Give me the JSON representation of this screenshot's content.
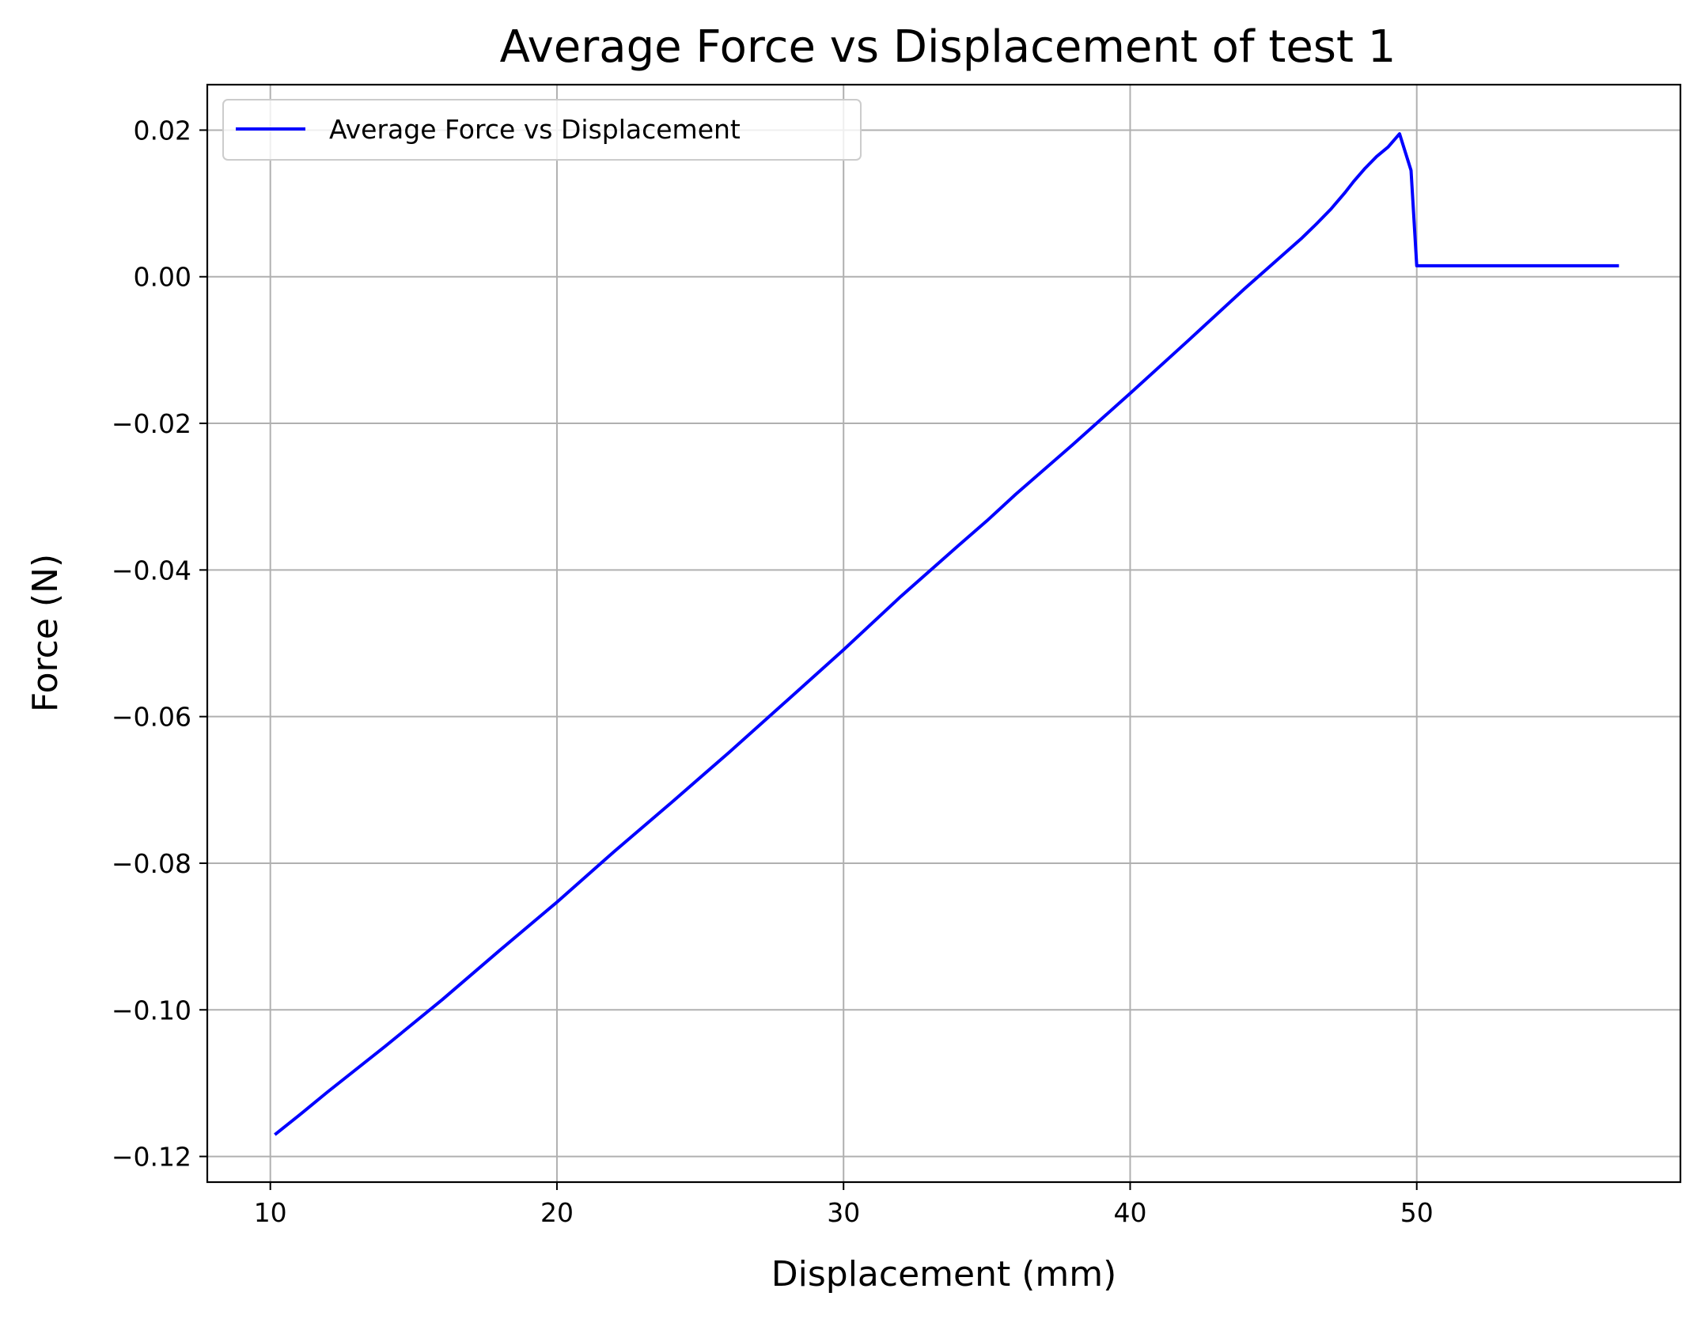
{
  "chart_data": {
    "type": "line",
    "title": "Average Force vs Displacement of test 1",
    "xlabel": "Displacement (mm)",
    "ylabel": "Force (N)",
    "xlim": [
      7.8,
      59.2
    ],
    "ylim": [
      -0.1235,
      0.0262
    ],
    "xticks": [
      10,
      20,
      30,
      40,
      50
    ],
    "xtick_labels": [
      "10",
      "20",
      "30",
      "40",
      "50"
    ],
    "yticks": [
      0.02,
      0.0,
      -0.02,
      -0.04,
      -0.06,
      -0.08,
      -0.1,
      -0.12
    ],
    "ytick_labels": [
      "0.02",
      "0.00",
      "−0.02",
      "−0.04",
      "−0.06",
      "−0.08",
      "−0.10",
      "−0.12"
    ],
    "grid": true,
    "legend": {
      "placement": "upper left"
    },
    "series": [
      {
        "name": "Average Force vs Displacement",
        "color": "#0000ff",
        "x": [
          10.2,
          11.0,
          12.0,
          14.0,
          16.0,
          18.0,
          20.0,
          22.0,
          24.0,
          26.0,
          28.0,
          30.0,
          32.0,
          34.0,
          35.0,
          36.0,
          38.0,
          40.0,
          42.0,
          44.0,
          46.0,
          46.5,
          47.0,
          47.5,
          47.8,
          48.2,
          48.6,
          49.0,
          49.4,
          49.8,
          50.0,
          51.0,
          52.0,
          53.0,
          54.0,
          55.0,
          56.0,
          57.0
        ],
        "y": [
          -0.1169,
          -0.1144,
          -0.1112,
          -0.105,
          -0.0986,
          -0.0919,
          -0.0853,
          -0.0784,
          -0.0717,
          -0.0649,
          -0.0579,
          -0.0509,
          -0.0436,
          -0.0367,
          -0.0333,
          -0.0297,
          -0.0229,
          -0.0159,
          -0.0088,
          -0.0016,
          0.0053,
          0.0072,
          0.0092,
          0.0115,
          0.013,
          0.0148,
          0.0164,
          0.0177,
          0.0195,
          0.0145,
          0.0015,
          0.0015,
          0.0015,
          0.0015,
          0.0015,
          0.0015,
          0.0015,
          0.0015
        ]
      }
    ]
  }
}
